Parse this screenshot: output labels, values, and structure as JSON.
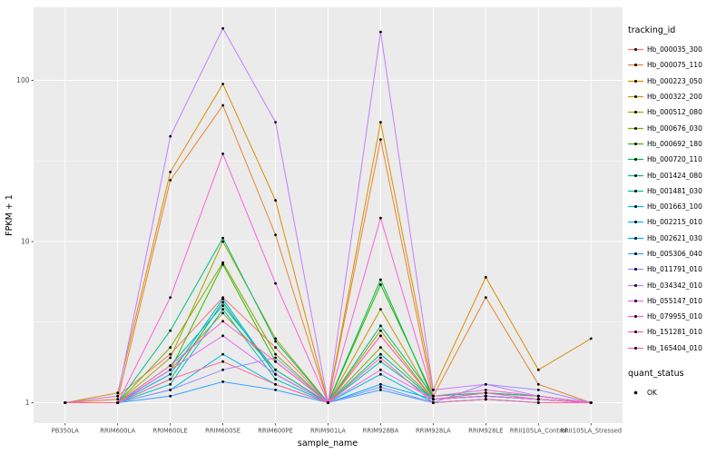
{
  "chart_data": {
    "type": "line",
    "title": "",
    "xlabel": "sample_name",
    "ylabel": "FPKM + 1",
    "y_scale": "log10",
    "y_ticks": [
      1,
      10,
      100
    ],
    "ylim": [
      1,
      280
    ],
    "grid": "on",
    "panel_background": "#EBEBEB",
    "gridline_color": "#FFFFFF",
    "point_color": "#000000",
    "categories": [
      "PB350LA",
      "RRIM600LA",
      "RRIM600LE",
      "RRIM600SE",
      "RRIM600PE",
      "RRIM901LA",
      "RRIM928BA",
      "RRIM928LA",
      "RRIM928LE",
      "RRII105LA_Control",
      "RRII105LA_Stressed"
    ],
    "series": [
      {
        "name": "Hb_000035_300",
        "color": "#F8766D",
        "values": [
          1,
          1.1,
          2.0,
          4.5,
          2.2,
          1,
          2.6,
          1.05,
          1.1,
          1.05,
          1
        ]
      },
      {
        "name": "Hb_000075_110",
        "color": "#EA8331",
        "values": [
          1,
          1.05,
          24,
          70,
          11,
          1,
          43,
          1.1,
          4.5,
          1.3,
          1
        ]
      },
      {
        "name": "Hb_000223_050",
        "color": "#D89000",
        "values": [
          1,
          1.15,
          27,
          95,
          18,
          1,
          55,
          1.2,
          6.0,
          1.6,
          2.5
        ]
      },
      {
        "name": "Hb_000322_200",
        "color": "#C09B00",
        "values": [
          1,
          1,
          1.6,
          3.6,
          1.6,
          1,
          3.8,
          1.05,
          1.1,
          1.05,
          1
        ]
      },
      {
        "name": "Hb_000512_080",
        "color": "#A3A500",
        "values": [
          1,
          1,
          1.9,
          10.0,
          2.5,
          1,
          2.8,
          1.05,
          1.15,
          1.1,
          1
        ]
      },
      {
        "name": "Hb_000676_030",
        "color": "#7CAE00",
        "values": [
          1,
          1,
          2.2,
          7.4,
          2.0,
          1,
          2.2,
          1.05,
          1.1,
          1.05,
          1
        ]
      },
      {
        "name": "Hb_000692_180",
        "color": "#39B600",
        "values": [
          1,
          1,
          1.6,
          7.2,
          1.8,
          1,
          5.4,
          1.1,
          1.15,
          1.1,
          1
        ]
      },
      {
        "name": "Hb_000720_110",
        "color": "#00BB4E",
        "values": [
          1,
          1,
          1.4,
          4.2,
          1.5,
          1,
          5.8,
          1.05,
          1.1,
          1.05,
          1
        ]
      },
      {
        "name": "Hb_001424_080",
        "color": "#00BF7D",
        "values": [
          1,
          1,
          2.8,
          10.5,
          2.4,
          1,
          3.0,
          1.1,
          1.15,
          1.1,
          1
        ]
      },
      {
        "name": "Hb_001481_030",
        "color": "#00C1A3",
        "values": [
          1,
          1,
          1.7,
          4.0,
          1.6,
          1,
          2.0,
          1.05,
          1.1,
          1.05,
          1
        ]
      },
      {
        "name": "Hb_001663_100",
        "color": "#00BFC4",
        "values": [
          1,
          1,
          1.3,
          3.8,
          1.4,
          1,
          1.8,
          1.05,
          1.1,
          1.05,
          1
        ]
      },
      {
        "name": "Hb_002215_010",
        "color": "#00BAE0",
        "values": [
          1,
          1,
          1.2,
          2.0,
          1.3,
          1,
          1.5,
          1,
          1.05,
          1,
          1
        ]
      },
      {
        "name": "Hb_002621_030",
        "color": "#00B0F6",
        "values": [
          1,
          1,
          1.5,
          4.4,
          1.5,
          1,
          1.3,
          1.05,
          1.1,
          1.05,
          1
        ]
      },
      {
        "name": "Hb_005306_040",
        "color": "#35A2FF",
        "values": [
          1,
          1,
          1.1,
          1.35,
          1.2,
          1,
          1.2,
          1,
          1.05,
          1,
          1
        ]
      },
      {
        "name": "Hb_011791_010",
        "color": "#9590FF",
        "values": [
          1,
          1,
          1.2,
          1.6,
          1.9,
          1,
          1.25,
          1,
          1.3,
          1.2,
          1
        ]
      },
      {
        "name": "Hb_034342_010",
        "color": "#C77CFF",
        "values": [
          1,
          1.1,
          45,
          210,
          55,
          1,
          200,
          1.2,
          1.3,
          1.1,
          1
        ]
      },
      {
        "name": "Hb_055147_010",
        "color": "#E76BF3",
        "values": [
          1,
          1,
          1.6,
          2.6,
          1.5,
          1,
          1.6,
          1.05,
          1.1,
          1.05,
          1
        ]
      },
      {
        "name": "Hb_079955_010",
        "color": "#FA62DB",
        "values": [
          1,
          1,
          4.5,
          35,
          5.5,
          1,
          14,
          1.1,
          1.2,
          1.1,
          1
        ]
      },
      {
        "name": "Hb_151281_010",
        "color": "#FF62BC",
        "values": [
          1,
          1,
          1.7,
          3.2,
          1.8,
          1,
          2.6,
          1.05,
          1.15,
          1.05,
          1
        ]
      },
      {
        "name": "Hb_165404_010",
        "color": "#FF6A98",
        "values": [
          1,
          1,
          1.4,
          1.8,
          1.3,
          1,
          1.9,
          1,
          1.05,
          1,
          1
        ]
      }
    ],
    "legend": {
      "title": "tracking_id",
      "position": "right"
    },
    "legend2": {
      "title": "quant_status",
      "items": [
        {
          "label": "OK",
          "marker": "point",
          "color": "#000000"
        }
      ]
    }
  }
}
